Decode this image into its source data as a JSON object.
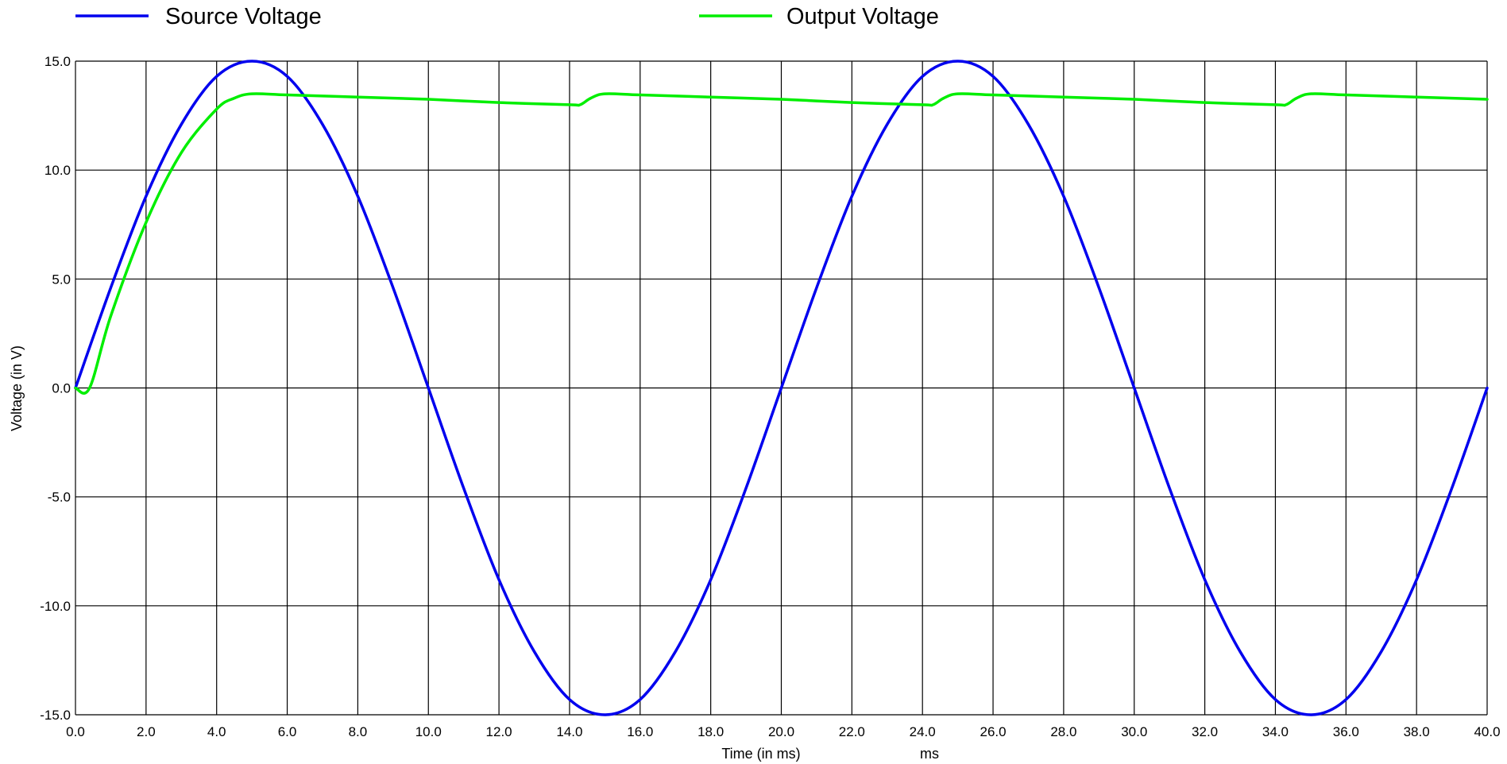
{
  "chart_data": {
    "type": "line",
    "title": "",
    "xlabel": "Time (in ms)",
    "x_unit_label": "ms",
    "ylabel": "Voltage (in V)",
    "xlim": [
      0,
      40
    ],
    "ylim": [
      -15,
      15
    ],
    "grid": true,
    "legend_position": "top",
    "x_ticks": [
      "0.0",
      "2.0",
      "4.0",
      "6.0",
      "8.0",
      "10.0",
      "12.0",
      "14.0",
      "16.0",
      "18.0",
      "20.0",
      "22.0",
      "24.0",
      "26.0",
      "28.0",
      "30.0",
      "32.0",
      "34.0",
      "36.0",
      "38.0",
      "40.0"
    ],
    "y_ticks": [
      "15.0",
      "10.0",
      "5.0",
      "0.0",
      "-5.0",
      "-10.0",
      "-15.0"
    ],
    "series": [
      {
        "name": "Source Voltage",
        "color": "#0000ee",
        "x": [
          0,
          1,
          2,
          3,
          4,
          5,
          6,
          7,
          8,
          9,
          10,
          11,
          12,
          13,
          14,
          15,
          16,
          17,
          18,
          19,
          20,
          21,
          22,
          23,
          24,
          25,
          26,
          27,
          28,
          29,
          30,
          31,
          32,
          33,
          34,
          35,
          36,
          37,
          38,
          39,
          40
        ],
        "values": [
          0,
          4.6,
          8.8,
          12.1,
          14.3,
          15,
          14.3,
          12.1,
          8.8,
          4.6,
          0,
          -4.6,
          -8.8,
          -12.1,
          -14.3,
          -15,
          -14.3,
          -12.1,
          -8.8,
          -4.6,
          0,
          4.6,
          8.8,
          12.1,
          14.3,
          15,
          14.3,
          12.1,
          8.8,
          4.6,
          0,
          -4.6,
          -8.8,
          -12.1,
          -14.3,
          -15,
          -14.3,
          -12.1,
          -8.8,
          -4.6,
          0
        ]
      },
      {
        "name": "Output Voltage",
        "color": "#00ee00",
        "x": [
          0,
          0.4,
          1,
          2,
          3,
          4,
          4.5,
          5,
          6,
          8,
          10,
          12,
          14,
          14.3,
          14.6,
          15,
          16,
          18,
          20,
          22,
          24,
          24.3,
          24.6,
          25,
          26,
          28,
          30,
          32,
          34,
          34.3,
          34.6,
          35,
          36,
          38,
          40
        ],
        "values": [
          0,
          0,
          3.3,
          7.6,
          10.8,
          12.8,
          13.3,
          13.5,
          13.45,
          13.35,
          13.25,
          13.1,
          13.0,
          13.0,
          13.3,
          13.5,
          13.45,
          13.35,
          13.25,
          13.1,
          13.0,
          13.0,
          13.3,
          13.5,
          13.45,
          13.35,
          13.25,
          13.1,
          13.0,
          13.0,
          13.3,
          13.5,
          13.45,
          13.35,
          13.25
        ]
      }
    ]
  }
}
